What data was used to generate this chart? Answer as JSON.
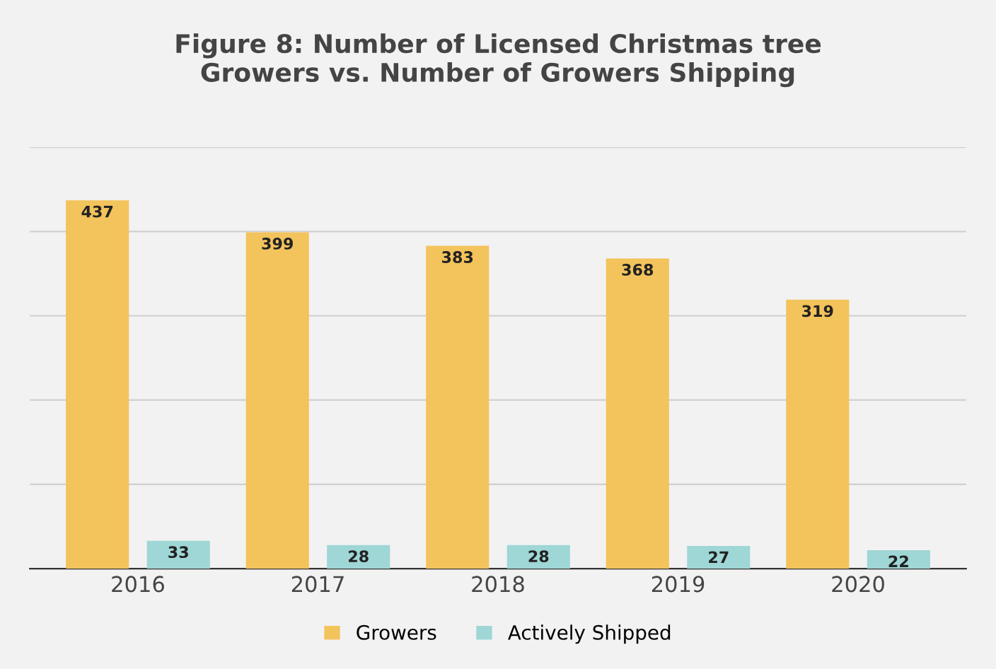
{
  "chart_data": {
    "type": "bar",
    "title": "Figure 8: Number of Licensed Christmas tree\nGrowers vs. Number of Growers Shipping",
    "categories": [
      "2016",
      "2017",
      "2018",
      "2019",
      "2020"
    ],
    "series": [
      {
        "name": "Growers",
        "color": "#f3c35c",
        "values": [
          437,
          399,
          383,
          368,
          319
        ]
      },
      {
        "name": "Actively Shipped",
        "color": "#9fd6d6",
        "values": [
          33,
          28,
          28,
          27,
          22
        ]
      }
    ],
    "ylim": [
      0,
      500
    ],
    "yticks": [
      {
        "value": 0,
        "label": null
      },
      {
        "value": 100,
        "label": null
      },
      {
        "value": 200,
        "label": null
      },
      {
        "value": 300,
        "label": null
      },
      {
        "value": 400,
        "label": null
      },
      {
        "value": 500,
        "label": null
      }
    ],
    "tick_labels": "x",
    "grid": "y",
    "data_labels": true,
    "legend": "bottom"
  }
}
